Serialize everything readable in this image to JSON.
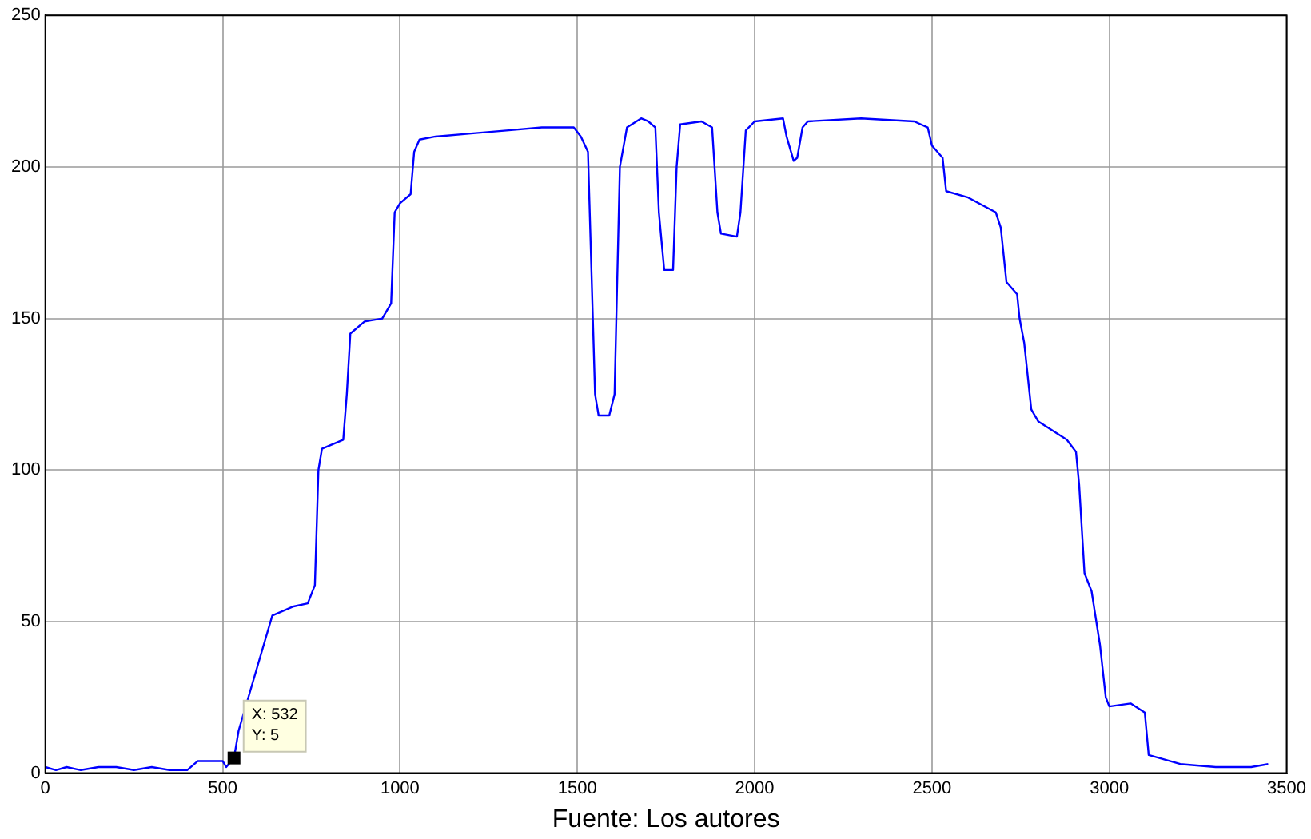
{
  "chart_data": {
    "type": "line",
    "x": [
      0,
      30,
      60,
      100,
      150,
      200,
      250,
      300,
      350,
      400,
      430,
      500,
      510,
      532,
      545,
      630,
      640,
      700,
      740,
      760,
      770,
      780,
      840,
      850,
      860,
      900,
      950,
      975,
      985,
      1000,
      1030,
      1040,
      1055,
      1100,
      1200,
      1300,
      1400,
      1490,
      1510,
      1530,
      1550,
      1560,
      1590,
      1605,
      1620,
      1640,
      1680,
      1700,
      1720,
      1730,
      1745,
      1770,
      1780,
      1790,
      1850,
      1880,
      1895,
      1905,
      1950,
      1960,
      1975,
      2000,
      2080,
      2090,
      2110,
      2120,
      2135,
      2150,
      2300,
      2450,
      2488,
      2500,
      2530,
      2540,
      2600,
      2680,
      2694,
      2710,
      2740,
      2747,
      2760,
      2780,
      2800,
      2880,
      2906,
      2915,
      2930,
      2950,
      2974,
      2990,
      3000,
      3060,
      3100,
      3111,
      3200,
      3300,
      3400,
      3448
    ],
    "series": [
      {
        "color": "#0000ff",
        "values": [
          2,
          1,
          2,
          1,
          2,
          2,
          1,
          2,
          1,
          1,
          4,
          4,
          2,
          5,
          14,
          48,
          52,
          55,
          56,
          62,
          100,
          107,
          110,
          125,
          145,
          149,
          150,
          155,
          185,
          188,
          191,
          205,
          209,
          210,
          211,
          212,
          213,
          213,
          210,
          205,
          125,
          118,
          118,
          125,
          200,
          213,
          216,
          215,
          213,
          185,
          166,
          166,
          200,
          214,
          215,
          213,
          185,
          178,
          177,
          185,
          212,
          215,
          216,
          210,
          202,
          203,
          213,
          215,
          216,
          215,
          213,
          207,
          203,
          192,
          190,
          185,
          180,
          162,
          158,
          150,
          142,
          120,
          116,
          110,
          106,
          95,
          66,
          60,
          42,
          25,
          22,
          23,
          20,
          6,
          3,
          2,
          2,
          3
        ]
      }
    ],
    "xlim": [
      0,
      3500
    ],
    "xticks": [
      0,
      500,
      1000,
      1500,
      2000,
      2500,
      3000,
      3500
    ],
    "ylim": [
      0,
      250
    ],
    "yticks": [
      0,
      50,
      100,
      150,
      200,
      250
    ],
    "grid": true,
    "legend": false,
    "marker": "none",
    "line_style": "solid",
    "annotations": [
      {
        "text": "X: 532\nY: 5",
        "x": 532,
        "y": 5
      },
      "Fuente: Los autores"
    ]
  }
}
